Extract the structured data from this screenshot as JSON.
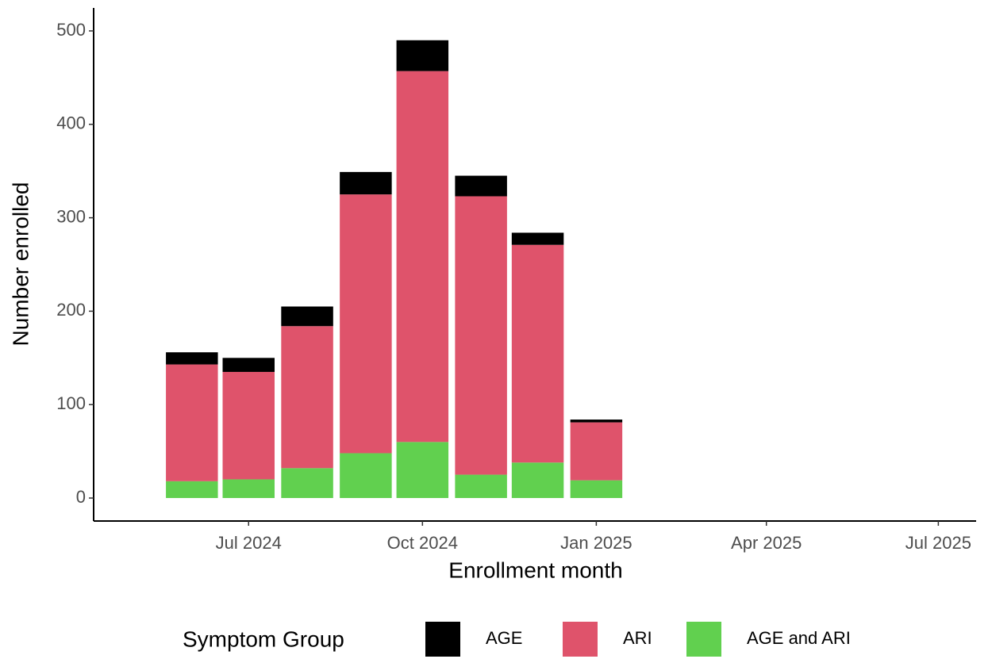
{
  "chart_data": {
    "type": "stacked_bar",
    "x_label": "Enrollment month",
    "y_label": "Number enrolled",
    "x": [
      "2024-06",
      "2024-07",
      "2024-08",
      "2024-09",
      "2024-10",
      "2024-11",
      "2024-12",
      "2025-01"
    ],
    "series": [
      {
        "name": "AGE",
        "color": "#000000",
        "values": [
          13,
          15,
          21,
          24,
          33,
          22,
          13,
          3
        ]
      },
      {
        "name": "ARI",
        "color": "#DF536B",
        "values": [
          125,
          115,
          152,
          277,
          397,
          298,
          233,
          62
        ]
      },
      {
        "name": "AGE and ARI",
        "color": "#61D04F",
        "values": [
          18,
          20,
          32,
          48,
          60,
          25,
          38,
          19
        ]
      }
    ],
    "xlim": [
      "2024-04-10",
      "2025-07-21"
    ],
    "xticks": [
      {
        "value": "2024-07",
        "label": "Jul 2024"
      },
      {
        "value": "2024-10",
        "label": "Oct 2024"
      },
      {
        "value": "2025-01",
        "label": "Jan 2025"
      },
      {
        "value": "2025-04",
        "label": "Apr 2025"
      },
      {
        "value": "2025-07",
        "label": "Jul 2025"
      }
    ],
    "ylim": [
      -24.6,
      524.6
    ],
    "yticks": [
      0,
      100,
      200,
      300,
      400,
      500
    ],
    "grid": false,
    "legend_title": "Symptom Group",
    "legend_position": "bottom"
  }
}
